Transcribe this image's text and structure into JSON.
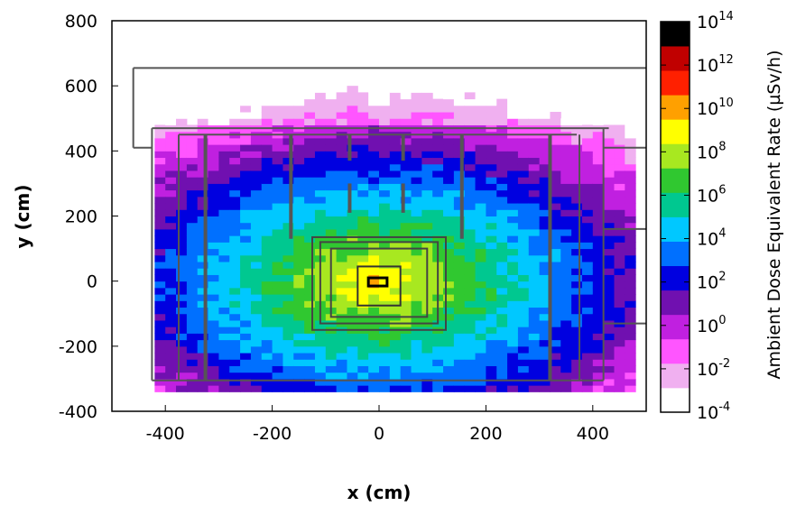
{
  "chart_data": {
    "type": "heatmap",
    "xlabel": "x (cm)",
    "ylabel": "y (cm)",
    "xlim": [
      -500,
      500
    ],
    "ylim": [
      -400,
      800
    ],
    "x_ticks": [
      -400,
      -200,
      0,
      200,
      400
    ],
    "y_ticks": [
      -400,
      -200,
      0,
      200,
      400,
      600,
      800
    ],
    "colorbar": {
      "label": "Ambient Dose Equivalent Rate (µSv/h)",
      "scale": "log",
      "range_exponent": [
        -4,
        14
      ],
      "tick_base": "10",
      "tick_exponents": [
        -4,
        -2,
        0,
        2,
        4,
        6,
        8,
        10,
        12,
        14
      ],
      "colors": [
        "#ffffff",
        "#f0b0f0",
        "#ff55ff",
        "#c020e0",
        "#7010b0",
        "#0000e0",
        "#0070ff",
        "#00c8ff",
        "#00c890",
        "#30c830",
        "#a8e820",
        "#ffff00",
        "#ffa000",
        "#ff2000",
        "#c00000",
        "#000000"
      ]
    },
    "field": {
      "description_source": "dose map",
      "center": [
        0,
        0
      ],
      "peak_log_dose": 9.5,
      "decay_per_100cm": 2.0,
      "noise_threshold_log_dose": -4
    },
    "geometry_lines_cm": [
      {
        "x1": -460,
        "y1": 655,
        "x2": 500,
        "y2": 655
      },
      {
        "x1": -460,
        "y1": 655,
        "x2": -460,
        "y2": 410
      },
      {
        "x1": -460,
        "y1": 410,
        "x2": -425,
        "y2": 410
      },
      {
        "x1": -425,
        "y1": 470,
        "x2": 430,
        "y2": 470
      },
      {
        "x1": -375,
        "y1": 450,
        "x2": 370,
        "y2": 450
      },
      {
        "x1": -425,
        "y1": 470,
        "x2": -425,
        "y2": -305
      },
      {
        "x1": -375,
        "y1": 450,
        "x2": -375,
        "y2": -305
      },
      {
        "x1": 375,
        "y1": 450,
        "x2": 375,
        "y2": -305
      },
      {
        "x1": 420,
        "y1": 470,
        "x2": 420,
        "y2": -305
      },
      {
        "x1": -425,
        "y1": -305,
        "x2": -325,
        "y2": -305
      },
      {
        "x1": 320,
        "y1": -305,
        "x2": 420,
        "y2": -305
      },
      {
        "x1": -325,
        "y1": -305,
        "x2": 320,
        "y2": -305
      },
      {
        "x1": 420,
        "y1": 410,
        "x2": 500,
        "y2": 410
      },
      {
        "x1": 420,
        "y1": -130,
        "x2": 500,
        "y2": -130
      },
      {
        "x1": 420,
        "y1": 160,
        "x2": 500,
        "y2": 160
      }
    ],
    "thick_walls_cm": [
      {
        "x1": -325,
        "y1": 450,
        "x2": -325,
        "y2": -305
      },
      {
        "x1": 320,
        "y1": 450,
        "x2": 320,
        "y2": -305
      },
      {
        "x1": -165,
        "y1": 450,
        "x2": -165,
        "y2": 130
      },
      {
        "x1": 155,
        "y1": 450,
        "x2": 155,
        "y2": 130
      },
      {
        "x1": -55,
        "y1": 450,
        "x2": -55,
        "y2": 370
      },
      {
        "x1": 45,
        "y1": 450,
        "x2": 45,
        "y2": 370
      },
      {
        "x1": -55,
        "y1": 300,
        "x2": -55,
        "y2": 210
      },
      {
        "x1": 45,
        "y1": 300,
        "x2": 45,
        "y2": 210
      }
    ],
    "inner_boxes_cm": [
      {
        "x": -125,
        "y": -150,
        "w": 250,
        "h": 285
      },
      {
        "x": -110,
        "y": -130,
        "w": 220,
        "h": 250
      },
      {
        "x": -90,
        "y": -110,
        "w": 180,
        "h": 210
      }
    ],
    "source_outline_cm": [
      {
        "x": -40,
        "y": -75,
        "w": 80,
        "h": 120
      },
      {
        "x": -20,
        "y": -15,
        "w": 35,
        "h": 25
      }
    ]
  }
}
